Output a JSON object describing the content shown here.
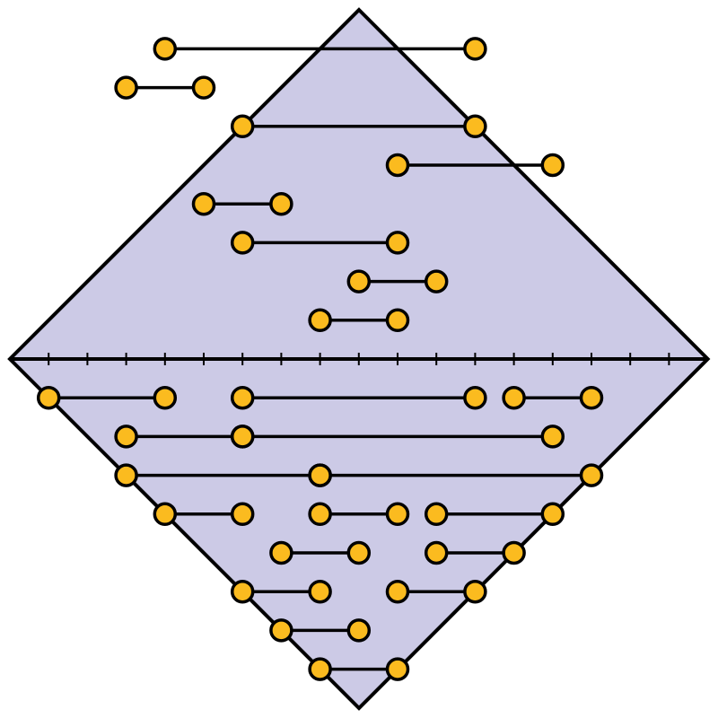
{
  "colors": {
    "background": "#ffffff",
    "diamond_fill": "#cccae6",
    "stroke": "#000000",
    "node_fill": "#fbbb1f"
  },
  "axis": {
    "min": 0,
    "max": 18,
    "ticks": [
      1,
      2,
      3,
      4,
      5,
      6,
      7,
      8,
      9,
      10,
      11,
      12,
      13,
      14,
      15,
      16,
      17
    ]
  },
  "upper_rows": [
    [
      [
        8,
        10
      ]
    ],
    [
      [
        9,
        11
      ]
    ],
    [
      [
        6,
        10
      ]
    ],
    [
      [
        5,
        7
      ]
    ],
    [
      [
        10,
        14
      ]
    ],
    [
      [
        6,
        12
      ]
    ],
    [
      [
        3,
        5
      ]
    ],
    [
      [
        4,
        12
      ]
    ]
  ],
  "lower_rows": [
    [
      [
        1,
        4
      ],
      [
        6,
        12
      ],
      [
        13,
        15
      ]
    ],
    [
      [
        3,
        6
      ],
      [
        6,
        14
      ]
    ],
    [
      [
        3,
        8
      ],
      [
        8,
        15
      ]
    ],
    [
      [
        4,
        6
      ],
      [
        8,
        10
      ],
      [
        11,
        14
      ]
    ],
    [
      [
        7,
        9
      ],
      [
        11,
        13
      ]
    ],
    [
      [
        6,
        8
      ],
      [
        10,
        12
      ]
    ],
    [
      [
        7,
        9
      ]
    ],
    [
      [
        8,
        10
      ]
    ]
  ]
}
